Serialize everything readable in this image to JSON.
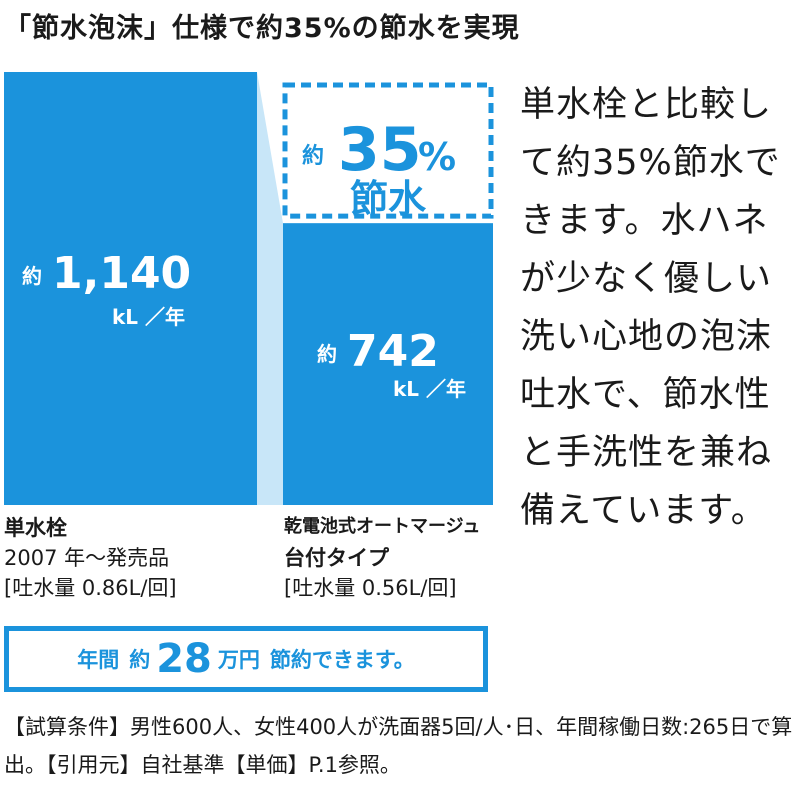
{
  "title": "「節水泡沫」仕様で約35%の節水を実現",
  "side_text": "単水栓と比較して約35%節水できます。水ハネが少なく優しい洗い心地の泡沫吐水で、節水性と手洗性を兼ね備えています。",
  "chart_data": {
    "type": "bar",
    "categories": [
      "単水栓 2007年〜発売品",
      "乾電池式オートマージュ 台付タイプ"
    ],
    "values": [
      1140,
      742
    ],
    "unit": "kL/年",
    "value_labels": [
      {
        "prefix": "約",
        "number": "1,140",
        "unit": "kL ／年"
      },
      {
        "prefix": "約",
        "number": "742",
        "unit": "kL ／年"
      }
    ],
    "savings_callout": {
      "prefix": "約",
      "number": "35",
      "percent": "%",
      "label": "節水"
    },
    "bar_color": "#1b93dc",
    "connector_color": "#c8e6f8"
  },
  "bar_labels": [
    {
      "name": "単水栓",
      "sub": "2007 年〜発売品",
      "spec": "[吐水量 0.86L/回]"
    },
    {
      "name": "乾電池式オートマージュ",
      "sub": "台付タイプ",
      "spec": "[吐水量 0.56L/回]"
    }
  ],
  "summary": {
    "prefix": "年間",
    "approx": "約",
    "number": "28",
    "unit": "万円",
    "suffix": "節約できます。"
  },
  "note": "【試算条件】男性600人、女性400人が洗面器5回/人･日、年間稼働日数:265日で算出。【引用元】自社基準【単価】P.1参照。"
}
